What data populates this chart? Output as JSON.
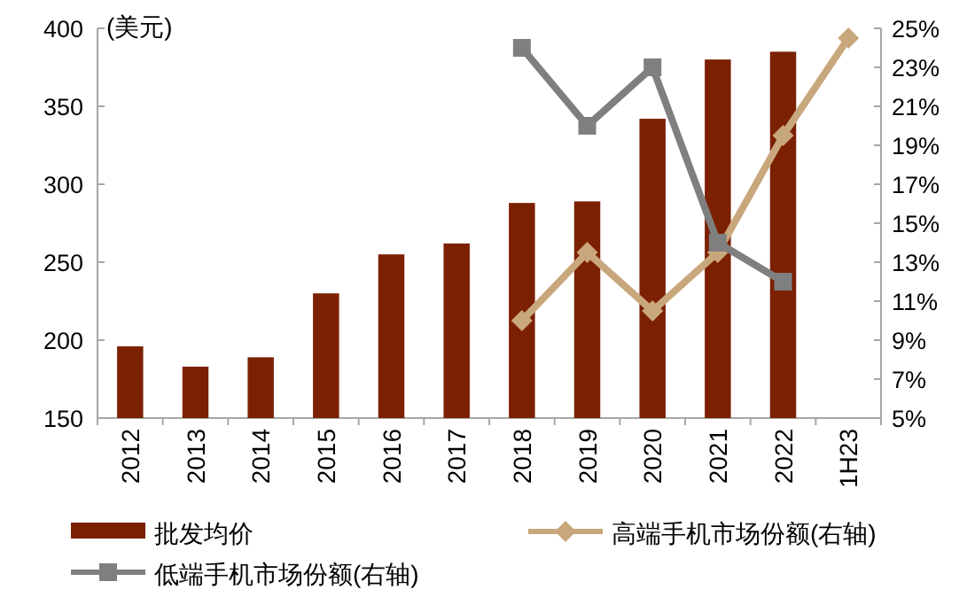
{
  "chart_data": {
    "type": "bar",
    "ylabel": "(美元)",
    "categories": [
      "2012",
      "2013",
      "2014",
      "2015",
      "2016",
      "2017",
      "2018",
      "2019",
      "2020",
      "2021",
      "2022",
      "1H23"
    ],
    "series": [
      {
        "name": "批发均价",
        "color": "#7b2000",
        "values": [
          196,
          183,
          189,
          230,
          255,
          262,
          288,
          289,
          342,
          380,
          385,
          null
        ]
      },
      {
        "name": "高端手机市场份额(右轴)",
        "type": "line",
        "axis": "y2",
        "marker": "diamond",
        "color": "#c9a77c",
        "values": [
          null,
          null,
          null,
          null,
          null,
          null,
          10,
          13.5,
          10.5,
          13.5,
          19.5,
          24.5
        ]
      },
      {
        "name": "低端手机市场份额(右轴)",
        "type": "line",
        "axis": "y2",
        "marker": "square",
        "color": "#7f7f7f",
        "values": [
          null,
          null,
          null,
          null,
          null,
          null,
          24,
          20,
          23,
          14,
          12,
          null
        ]
      }
    ],
    "ylim": [
      150,
      400
    ],
    "yticks": [
      150,
      200,
      250,
      300,
      350,
      400
    ],
    "y2lim": [
      5,
      25
    ],
    "y2ticks": [
      {
        "value": 5,
        "label": "5%"
      },
      {
        "value": 7,
        "label": "7%"
      },
      {
        "value": 9,
        "label": "9%"
      },
      {
        "value": 11,
        "label": "11%"
      },
      {
        "value": 13,
        "label": "13%"
      },
      {
        "value": 15,
        "label": "15%"
      },
      {
        "value": 17,
        "label": "17%"
      },
      {
        "value": 19,
        "label": "19%"
      },
      {
        "value": 21,
        "label": "21%"
      },
      {
        "value": 23,
        "label": "23%"
      },
      {
        "value": 25,
        "label": "25%"
      }
    ],
    "grid": false,
    "legend": "bottom",
    "line_style": "solid"
  }
}
